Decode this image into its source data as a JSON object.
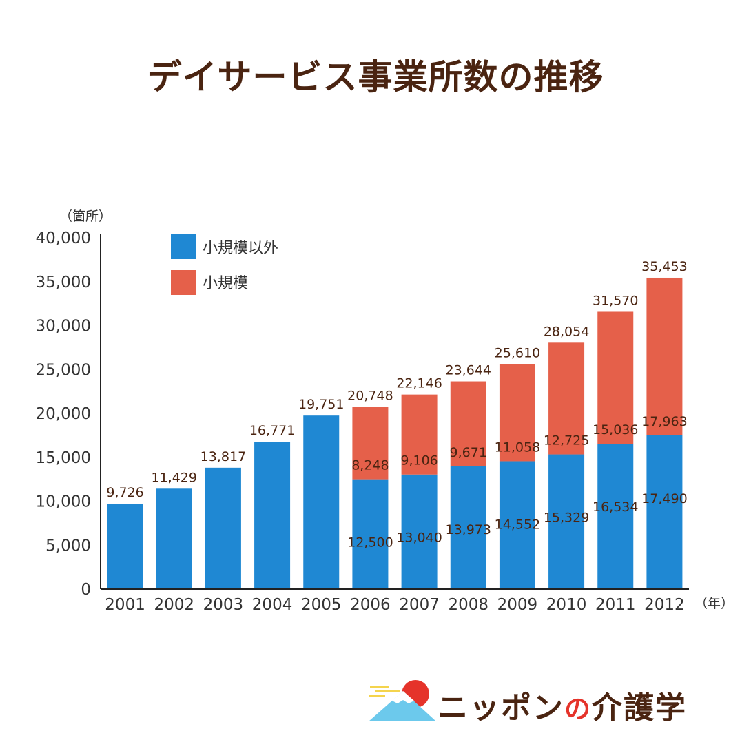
{
  "title": "デイサービス事業所数の推移",
  "chart_data": {
    "type": "bar",
    "stacked": true,
    "title": "デイサービス事業所数の推移",
    "ylabel": "（箇所）",
    "xlabel": "（年）",
    "ylim": [
      0,
      40000
    ],
    "yticks": [
      "0",
      "5,000",
      "10,000",
      "15,000",
      "20,000",
      "25,000",
      "30,000",
      "35,000",
      "40,000"
    ],
    "categories": [
      "2001",
      "2002",
      "2003",
      "2004",
      "2005",
      "2006",
      "2007",
      "2008",
      "2009",
      "2010",
      "2011",
      "2012"
    ],
    "series": [
      {
        "name": "小規模以外",
        "color": "#1f88d3",
        "values": [
          9726,
          11429,
          13817,
          16771,
          19751,
          12500,
          13040,
          13973,
          14552,
          15329,
          16534,
          17490
        ],
        "labels": [
          "",
          "",
          "",
          "",
          "",
          "12,500",
          "13,040",
          "13,973",
          "14,552",
          "15,329",
          "16,534",
          "17,490"
        ]
      },
      {
        "name": "小規模",
        "color": "#e5604a",
        "values": [
          0,
          0,
          0,
          0,
          0,
          8248,
          9106,
          9671,
          11058,
          12725,
          15036,
          17963
        ],
        "labels": [
          "",
          "",
          "",
          "",
          "",
          "8,248",
          "9,106",
          "9,671",
          "11,058",
          "12,725",
          "15,036",
          "17,963"
        ]
      }
    ],
    "totals": [
      9726,
      11429,
      13817,
      16771,
      19751,
      20748,
      22146,
      23644,
      25610,
      28054,
      31570,
      35453
    ],
    "total_labels": [
      "9,726",
      "11,429",
      "13,817",
      "16,771",
      "19,751",
      "20,748",
      "22,146",
      "23,644",
      "25,610",
      "28,054",
      "31,570",
      "35,453"
    ],
    "legend_position": "top-left",
    "grid": false
  },
  "logo": {
    "text_a": "ニッポン",
    "text_no": "の",
    "text_b": "介護学",
    "sun_color": "#e5332a",
    "mountain_color": "#6cc9ec",
    "cloud_color": "#f4d44d"
  }
}
